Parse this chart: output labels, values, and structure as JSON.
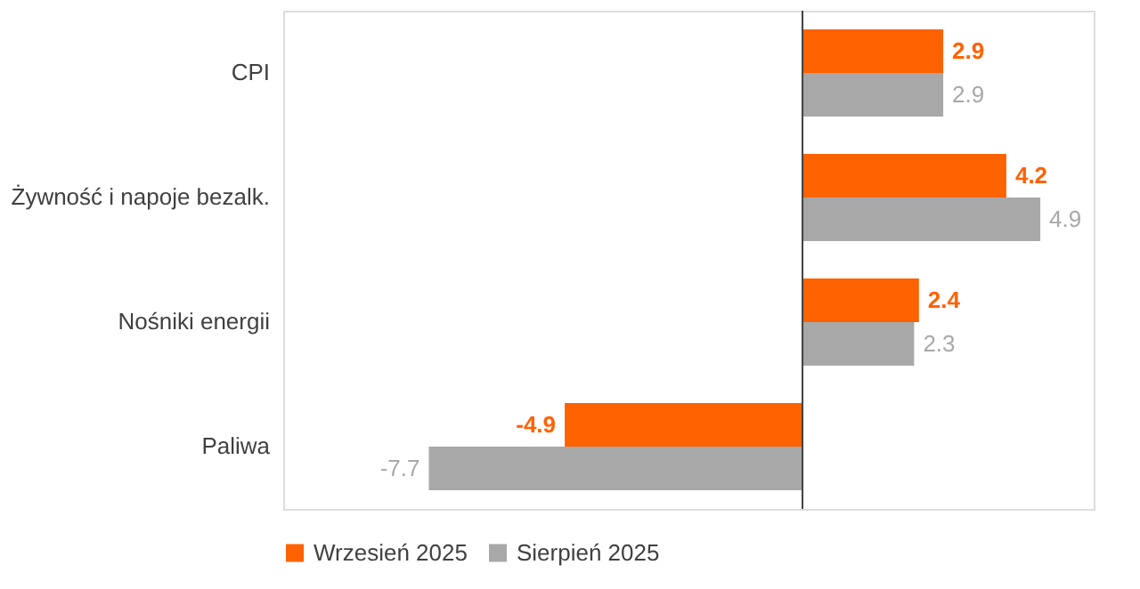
{
  "chart_data": {
    "type": "bar",
    "orientation": "horizontal",
    "categories": [
      "CPI",
      "Żywność i napoje bezalk.",
      "Nośniki energii",
      "Paliwa"
    ],
    "series": [
      {
        "name": "Wrzesień 2025",
        "color": "#ff6200",
        "values": [
          2.9,
          4.2,
          2.4,
          -4.9
        ]
      },
      {
        "name": "Sierpień 2025",
        "color": "#a8a8a8",
        "values": [
          2.9,
          4.9,
          2.3,
          -7.7
        ]
      }
    ],
    "xlim": [
      -10.7,
      6
    ],
    "data_labels": true,
    "legend": "bottom",
    "grid": false,
    "tick_labels": "y"
  }
}
